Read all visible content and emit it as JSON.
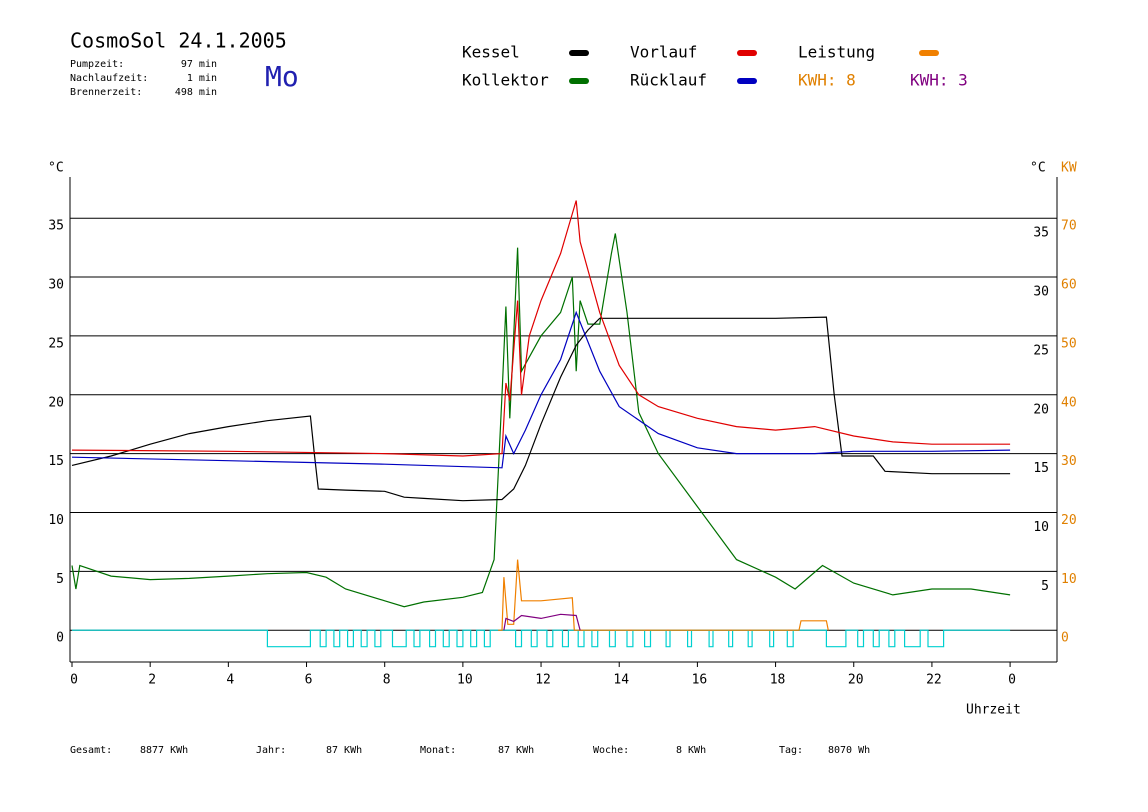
{
  "chart_data": {
    "type": "line",
    "title": "CosmoSol 24.1.2005",
    "day": "Mo",
    "info": [
      {
        "label": "Pumpzeit:",
        "value": "97 min"
      },
      {
        "label": "Nachlaufzeit:",
        "value": "1 min"
      },
      {
        "label": "Brennerzeit:",
        "value": "498 min"
      }
    ],
    "annotations": [
      {
        "text": "KWH: 8",
        "color": "#e08000"
      }
    ],
    "y_unit": "°C",
    "y2_unit": "°C",
    "y2_label": "KW",
    "xlabel": "Uhrzeit",
    "xlim": [
      0,
      25.2
    ],
    "xticks": [
      0,
      2,
      4,
      6,
      8,
      10,
      12,
      14,
      16,
      18,
      20,
      22,
      {
        "value": 24,
        "label": "0"
      }
    ],
    "ylim": [
      -2.7,
      38.5
    ],
    "yticks": [
      0,
      5,
      10,
      15,
      20,
      25,
      30,
      35
    ],
    "y2lim": [
      -5.4,
      77
    ],
    "y2ticks": [
      0,
      10,
      20,
      30,
      40,
      50,
      60,
      70
    ],
    "grid": true,
    "series": [
      {
        "name": "Kessel",
        "color": "#000000",
        "x": [
          0,
          1,
          2,
          3,
          4,
          5,
          6.1,
          6.2,
          6.3,
          7,
          8,
          8.5,
          9,
          10,
          11,
          11.3,
          11.6,
          12,
          12.5,
          12.9,
          13.2,
          13.5,
          16,
          18,
          19.3,
          19.5,
          19.7,
          20.5,
          20.8,
          22,
          24
        ],
        "values": [
          14,
          14.8,
          15.8,
          16.7,
          17.3,
          17.8,
          18.2,
          15,
          12,
          11.9,
          11.8,
          11.3,
          11.2,
          11,
          11.1,
          12,
          14,
          17.5,
          21.5,
          24.2,
          25.5,
          26.5,
          26.5,
          26.5,
          26.6,
          20,
          14.8,
          14.8,
          13.5,
          13.3,
          13.3
        ]
      },
      {
        "name": "Vorlauf",
        "color": "#e00000",
        "x": [
          0,
          4,
          8,
          10,
          11,
          11.1,
          11.2,
          11.4,
          11.5,
          11.7,
          12,
          12.5,
          12.9,
          13,
          13.5,
          14,
          14.5,
          15,
          16,
          17,
          18,
          19,
          20,
          21,
          22,
          24
        ],
        "values": [
          15.3,
          15.2,
          15,
          14.8,
          15,
          21,
          19.5,
          28,
          20,
          25,
          28,
          32,
          36.5,
          33,
          27,
          22.5,
          20,
          19,
          18,
          17.3,
          17,
          17.3,
          16.5,
          16,
          15.8,
          15.8
        ]
      },
      {
        "name": "Leistung",
        "color": "#f08000",
        "axis": "y2",
        "x": [
          10.9,
          11,
          11.05,
          11.15,
          11.3,
          11.4,
          11.5,
          12,
          12.8,
          12.85,
          18.6,
          18.65,
          19.3,
          19.35
        ],
        "values": [
          0,
          0,
          9,
          1,
          1,
          12,
          5,
          5,
          5.5,
          0,
          0,
          1.6,
          1.6,
          0
        ]
      },
      {
        "name": "Kollektor",
        "color": "#007000",
        "x": [
          0,
          0.1,
          0.2,
          1,
          2,
          3,
          4,
          5,
          6,
          6.5,
          7,
          8,
          8.5,
          9,
          10,
          10.5,
          10.8,
          11,
          11.1,
          11.2,
          11.3,
          11.4,
          11.5,
          12,
          12.5,
          12.8,
          12.9,
          13,
          13.2,
          13.5,
          13.8,
          13.9,
          14.2,
          14.5,
          15,
          16,
          17,
          18,
          18.5,
          19.2,
          20,
          21,
          22,
          23,
          24
        ],
        "values": [
          5.5,
          3.5,
          5.5,
          4.6,
          4.3,
          4.4,
          4.6,
          4.8,
          4.9,
          4.5,
          3.5,
          2.5,
          2,
          2.4,
          2.8,
          3.2,
          6,
          20,
          27.5,
          18,
          25,
          32.5,
          22,
          25,
          27,
          30,
          22,
          28,
          26,
          26,
          32,
          33.7,
          27,
          18.5,
          15,
          10.5,
          6,
          4.5,
          3.5,
          5.5,
          4,
          3,
          3.5,
          3.5,
          3
        ]
      },
      {
        "name": "Rücklauf",
        "color": "#0000c0",
        "x": [
          0,
          4,
          8,
          11,
          11.1,
          11.3,
          11.6,
          12,
          12.5,
          12.9,
          13.5,
          14,
          15,
          16,
          17,
          19,
          20,
          22,
          24
        ],
        "values": [
          14.7,
          14.4,
          14.1,
          13.8,
          16.5,
          15,
          17,
          20,
          23,
          27,
          22,
          19,
          16.7,
          15.5,
          15,
          15,
          15.2,
          15.2,
          15.3
        ]
      },
      {
        "name": "KWH: 3",
        "color": "#800080",
        "axis": "y2",
        "x": [
          11.05,
          11.1,
          11.3,
          11.5,
          12,
          12.5,
          12.9,
          13
        ],
        "values": [
          0,
          2,
          1.5,
          2.5,
          2,
          2.7,
          2.5,
          0
        ]
      },
      {
        "color": "#00d0d0",
        "x": [
          0,
          5,
          5,
          6.1,
          6.1,
          6.35,
          6.35,
          6.5,
          6.5,
          6.7,
          6.7,
          6.85,
          6.85,
          7.05,
          7.05,
          7.2,
          7.2,
          7.4,
          7.4,
          7.55,
          7.55,
          7.75,
          7.75,
          7.9,
          7.9,
          8.2,
          8.2,
          8.55,
          8.55,
          8.75,
          8.75,
          8.9,
          8.9,
          9.15,
          9.15,
          9.3,
          9.3,
          9.5,
          9.5,
          9.65,
          9.65,
          9.85,
          9.85,
          10,
          10,
          10.2,
          10.2,
          10.35,
          10.35,
          10.55,
          10.55,
          10.7,
          10.7,
          11.35,
          11.35,
          11.5,
          11.5,
          11.75,
          11.75,
          11.9,
          11.9,
          12.15,
          12.15,
          12.3,
          12.3,
          12.55,
          12.55,
          12.7,
          12.7,
          12.95,
          12.95,
          13.1,
          13.1,
          13.3,
          13.3,
          13.45,
          13.45,
          13.75,
          13.75,
          13.9,
          13.9,
          14.2,
          14.2,
          14.35,
          14.35,
          14.65,
          14.65,
          14.8,
          14.8,
          15.2,
          15.2,
          15.3,
          15.3,
          15.75,
          15.75,
          15.85,
          15.85,
          16.3,
          16.3,
          16.4,
          16.4,
          16.8,
          16.8,
          16.9,
          16.9,
          17.3,
          17.3,
          17.4,
          17.4,
          17.85,
          17.85,
          17.95,
          17.95,
          18.3,
          18.3,
          18.45,
          18.45,
          19.3,
          19.3,
          19.8,
          19.8,
          20.1,
          20.1,
          20.25,
          20.25,
          20.5,
          20.5,
          20.65,
          20.65,
          20.9,
          20.9,
          21.05,
          21.05,
          21.3,
          21.3,
          21.7,
          21.7,
          21.9,
          21.9,
          22.3,
          22.3,
          24
        ],
        "values": [
          0,
          0,
          -1.4,
          -1.4,
          0,
          0,
          -1.4,
          -1.4,
          0,
          0,
          -1.4,
          -1.4,
          0,
          0,
          -1.4,
          -1.4,
          0,
          0,
          -1.4,
          -1.4,
          0,
          0,
          -1.4,
          -1.4,
          0,
          0,
          -1.4,
          -1.4,
          0,
          0,
          -1.4,
          -1.4,
          0,
          0,
          -1.4,
          -1.4,
          0,
          0,
          -1.4,
          -1.4,
          0,
          0,
          -1.4,
          -1.4,
          0,
          0,
          -1.4,
          -1.4,
          0,
          0,
          -1.4,
          -1.4,
          0,
          0,
          -1.4,
          -1.4,
          0,
          0,
          -1.4,
          -1.4,
          0,
          0,
          -1.4,
          -1.4,
          0,
          0,
          -1.4,
          -1.4,
          0,
          0,
          -1.4,
          -1.4,
          0,
          0,
          -1.4,
          -1.4,
          0,
          0,
          -1.4,
          -1.4,
          0,
          0,
          -1.4,
          -1.4,
          0,
          0,
          -1.4,
          -1.4,
          0,
          0,
          -1.4,
          -1.4,
          0,
          0,
          -1.4,
          -1.4,
          0,
          0,
          -1.4,
          -1.4,
          0,
          0,
          -1.4,
          -1.4,
          0,
          0,
          -1.4,
          -1.4,
          0,
          0,
          -1.4,
          -1.4,
          0,
          0,
          -1.4,
          -1.4,
          0,
          0,
          -1.4,
          -1.4,
          0,
          0,
          -1.4,
          -1.4,
          0,
          0,
          -1.4,
          -1.4,
          0,
          0,
          -1.4,
          -1.4,
          0,
          0,
          -1.4,
          -1.4,
          0,
          0,
          -1.4,
          -1.4,
          0,
          0
        ]
      }
    ],
    "footer": [
      {
        "label": "Gesamt:",
        "value": "8877 KWh"
      },
      {
        "label": "Jahr:",
        "value": "87 KWh"
      },
      {
        "label": "Monat:",
        "value": "87 KWh"
      },
      {
        "label": "Woche:",
        "value": "8 KWh"
      },
      {
        "label": "Tag:",
        "value": "8070 Wh"
      }
    ]
  }
}
